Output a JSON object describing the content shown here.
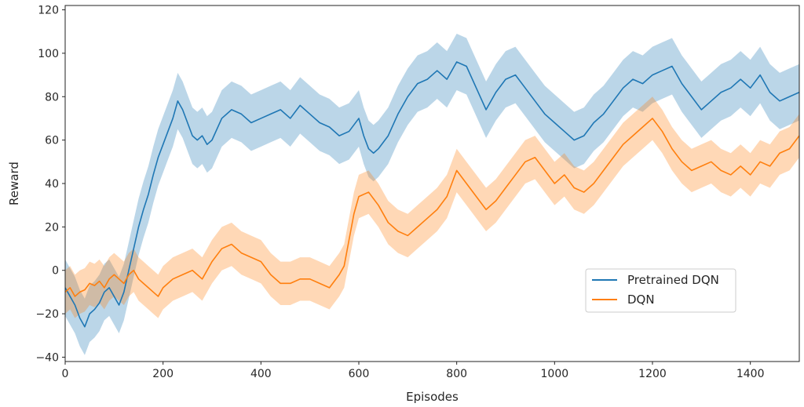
{
  "chart_data": {
    "type": "line",
    "title": "",
    "xlabel": "Episodes",
    "ylabel": "Reward",
    "xlim": [
      0,
      1500
    ],
    "ylim": [
      -42,
      122
    ],
    "xticks": [
      0,
      200,
      400,
      600,
      800,
      1000,
      1200,
      1400
    ],
    "yticks": [
      -40,
      -20,
      0,
      20,
      40,
      60,
      80,
      100,
      120
    ],
    "grid": false,
    "legend_position": "lower-right",
    "series": [
      {
        "name": "Pretrained DQN",
        "color": "#1f77b4",
        "band_halfwidth": 13,
        "x": [
          0,
          10,
          20,
          30,
          40,
          50,
          60,
          70,
          80,
          90,
          100,
          110,
          120,
          130,
          140,
          150,
          160,
          170,
          180,
          190,
          200,
          210,
          220,
          230,
          240,
          250,
          260,
          270,
          280,
          290,
          300,
          320,
          340,
          360,
          380,
          400,
          420,
          440,
          460,
          480,
          500,
          520,
          540,
          560,
          580,
          600,
          610,
          620,
          630,
          640,
          660,
          680,
          700,
          720,
          740,
          760,
          780,
          800,
          820,
          840,
          860,
          880,
          900,
          920,
          940,
          960,
          980,
          1000,
          1020,
          1040,
          1060,
          1080,
          1100,
          1120,
          1140,
          1160,
          1180,
          1200,
          1220,
          1240,
          1260,
          1280,
          1300,
          1320,
          1340,
          1360,
          1380,
          1400,
          1420,
          1440,
          1460,
          1480,
          1500
        ],
        "values": [
          -8,
          -12,
          -16,
          -22,
          -26,
          -20,
          -18,
          -15,
          -10,
          -8,
          -12,
          -16,
          -10,
          0,
          10,
          20,
          28,
          35,
          44,
          52,
          58,
          64,
          70,
          78,
          74,
          68,
          62,
          60,
          62,
          58,
          60,
          70,
          74,
          72,
          68,
          70,
          72,
          74,
          70,
          76,
          72,
          68,
          66,
          62,
          64,
          70,
          62,
          56,
          54,
          56,
          62,
          72,
          80,
          86,
          88,
          92,
          88,
          96,
          94,
          84,
          74,
          82,
          88,
          90,
          84,
          78,
          72,
          68,
          64,
          60,
          62,
          68,
          72,
          78,
          84,
          88,
          86,
          90,
          92,
          94,
          86,
          80,
          74,
          78,
          82,
          84,
          88,
          84,
          90,
          82,
          78,
          80,
          82
        ]
      },
      {
        "name": "DQN",
        "color": "#ff7f0e",
        "band_halfwidth": 10,
        "x": [
          0,
          10,
          20,
          30,
          40,
          50,
          60,
          70,
          80,
          90,
          100,
          110,
          120,
          130,
          140,
          150,
          160,
          170,
          180,
          190,
          200,
          220,
          240,
          260,
          280,
          300,
          320,
          340,
          360,
          380,
          400,
          420,
          440,
          460,
          480,
          500,
          520,
          540,
          560,
          570,
          580,
          590,
          600,
          620,
          640,
          660,
          680,
          700,
          720,
          740,
          760,
          780,
          800,
          820,
          840,
          860,
          880,
          900,
          920,
          940,
          960,
          980,
          1000,
          1020,
          1040,
          1060,
          1080,
          1100,
          1120,
          1140,
          1160,
          1180,
          1200,
          1220,
          1240,
          1260,
          1280,
          1300,
          1320,
          1340,
          1360,
          1380,
          1400,
          1420,
          1440,
          1460,
          1480,
          1500
        ],
        "values": [
          -10,
          -8,
          -12,
          -10,
          -9,
          -6,
          -7,
          -5,
          -8,
          -4,
          -2,
          -4,
          -6,
          -2,
          0,
          -4,
          -6,
          -8,
          -10,
          -12,
          -8,
          -4,
          -2,
          0,
          -4,
          4,
          10,
          12,
          8,
          6,
          4,
          -2,
          -6,
          -6,
          -4,
          -4,
          -6,
          -8,
          -2,
          2,
          14,
          26,
          34,
          36,
          30,
          22,
          18,
          16,
          20,
          24,
          28,
          34,
          46,
          40,
          34,
          28,
          32,
          38,
          44,
          50,
          52,
          46,
          40,
          44,
          38,
          36,
          40,
          46,
          52,
          58,
          62,
          66,
          70,
          64,
          56,
          50,
          46,
          48,
          50,
          46,
          44,
          48,
          44,
          50,
          48,
          54,
          56,
          62
        ]
      }
    ]
  }
}
